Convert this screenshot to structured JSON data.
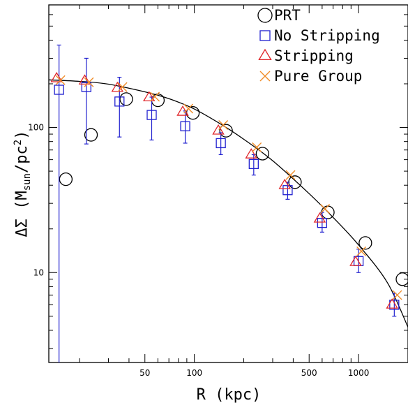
{
  "chart_data": {
    "type": "scatter",
    "title": "",
    "xlabel": "R (kpc)",
    "ylabel_parts": {
      "prefix": "ΔΣ (M",
      "sub": "sun",
      "mid": "/pc",
      "sup": "2",
      "suffix": ")"
    },
    "x_scale": "log",
    "y_scale": "log",
    "xlim": [
      13,
      2000
    ],
    "ylim": [
      2.4,
      700
    ],
    "x_tick_labels": [
      "50",
      "100",
      "500",
      "1000"
    ],
    "x_ticks": [
      50,
      100,
      500,
      1000
    ],
    "y_tick_labels": [
      "10",
      "100"
    ],
    "y_ticks": [
      10,
      100
    ],
    "grid": false,
    "legend_position": "top-right",
    "series": [
      {
        "name": "PRT",
        "marker": "circle",
        "color": "#000000",
        "points": [
          {
            "x": 16.5,
            "y": 44
          },
          {
            "x": 23.5,
            "y": 89
          },
          {
            "x": 38.5,
            "y": 157
          },
          {
            "x": 60,
            "y": 154
          },
          {
            "x": 98,
            "y": 126
          },
          {
            "x": 156,
            "y": 95
          },
          {
            "x": 260,
            "y": 66
          },
          {
            "x": 410,
            "y": 42
          },
          {
            "x": 650,
            "y": 26
          },
          {
            "x": 1100,
            "y": 16
          },
          {
            "x": 1850,
            "y": 9
          }
        ]
      },
      {
        "name": "No Stripping",
        "marker": "square",
        "color": "#1f1fcf",
        "points": [
          {
            "x": 15,
            "y": 182,
            "ylow": 2.4,
            "yhigh": 370
          },
          {
            "x": 22,
            "y": 190,
            "ylow": 77,
            "yhigh": 300
          },
          {
            "x": 35,
            "y": 151,
            "ylow": 86,
            "yhigh": 222
          },
          {
            "x": 55,
            "y": 122,
            "ylow": 82,
            "yhigh": 162
          },
          {
            "x": 88,
            "y": 102,
            "ylow": 78,
            "yhigh": 130
          },
          {
            "x": 145,
            "y": 78,
            "ylow": 65,
            "yhigh": 92
          },
          {
            "x": 230,
            "y": 56,
            "ylow": 47,
            "yhigh": 65
          },
          {
            "x": 370,
            "y": 37,
            "ylow": 32,
            "yhigh": 42
          },
          {
            "x": 600,
            "y": 22,
            "ylow": 19,
            "yhigh": 26
          },
          {
            "x": 1000,
            "y": 12,
            "ylow": 10,
            "yhigh": 14.5
          },
          {
            "x": 1650,
            "y": 6,
            "ylow": 5,
            "yhigh": 7.2
          }
        ]
      },
      {
        "name": "Stripping",
        "marker": "triangle",
        "color": "#e0262a",
        "points": [
          {
            "x": 14.5,
            "y": 218
          },
          {
            "x": 21.5,
            "y": 210
          },
          {
            "x": 34,
            "y": 187
          },
          {
            "x": 53,
            "y": 161
          },
          {
            "x": 85,
            "y": 128
          },
          {
            "x": 140,
            "y": 95
          },
          {
            "x": 222,
            "y": 65
          },
          {
            "x": 355,
            "y": 40
          },
          {
            "x": 580,
            "y": 23.5
          },
          {
            "x": 960,
            "y": 11.8
          },
          {
            "x": 1600,
            "y": 6
          }
        ]
      },
      {
        "name": "Pure Group",
        "marker": "cross",
        "color": "#f08c28",
        "points": [
          {
            "x": 15.3,
            "y": 212
          },
          {
            "x": 22.8,
            "y": 205
          },
          {
            "x": 36.5,
            "y": 190
          },
          {
            "x": 57.5,
            "y": 163
          },
          {
            "x": 92,
            "y": 135
          },
          {
            "x": 150,
            "y": 104
          },
          {
            "x": 240,
            "y": 73
          },
          {
            "x": 385,
            "y": 47
          },
          {
            "x": 625,
            "y": 27.5
          },
          {
            "x": 1040,
            "y": 14
          },
          {
            "x": 1720,
            "y": 7
          }
        ]
      }
    ],
    "fit_curve": {
      "color": "#000000",
      "points": [
        {
          "x": 13,
          "y": 213
        },
        {
          "x": 20,
          "y": 208
        },
        {
          "x": 30,
          "y": 199
        },
        {
          "x": 50,
          "y": 176
        },
        {
          "x": 70,
          "y": 158
        },
        {
          "x": 100,
          "y": 134
        },
        {
          "x": 150,
          "y": 103
        },
        {
          "x": 200,
          "y": 83
        },
        {
          "x": 300,
          "y": 59
        },
        {
          "x": 500,
          "y": 35
        },
        {
          "x": 700,
          "y": 24
        },
        {
          "x": 1000,
          "y": 15.5
        },
        {
          "x": 1500,
          "y": 8.5
        },
        {
          "x": 2000,
          "y": 4.2
        }
      ]
    }
  }
}
